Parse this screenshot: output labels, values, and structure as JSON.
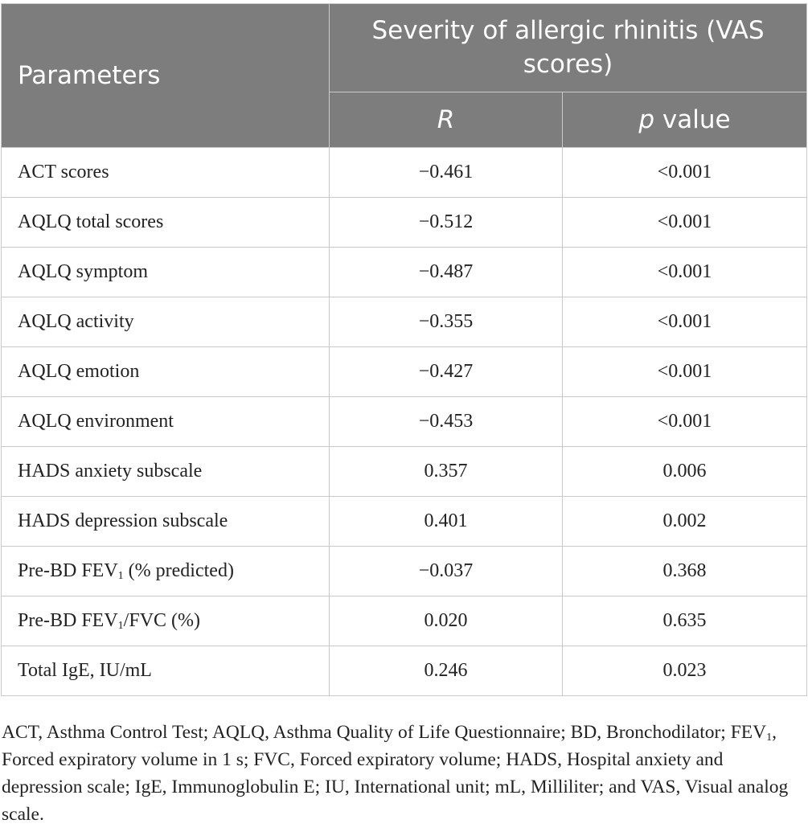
{
  "table": {
    "header": {
      "parameters": "Parameters",
      "group": "Severity of allergic rhinitis (VAS scores)",
      "col_r": "R",
      "col_p_italic": "p",
      "col_p_rest": " value"
    },
    "rows": [
      {
        "name": "ACT scores",
        "r": "−0.461",
        "p": "<0.001"
      },
      {
        "name": "AQLQ total scores",
        "r": "−0.512",
        "p": "<0.001"
      },
      {
        "name": "AQLQ symptom",
        "r": "−0.487",
        "p": "<0.001"
      },
      {
        "name": "AQLQ activity",
        "r": "−0.355",
        "p": "<0.001"
      },
      {
        "name": "AQLQ emotion",
        "r": "−0.427",
        "p": "<0.001"
      },
      {
        "name": "AQLQ environment",
        "r": "−0.453",
        "p": "<0.001"
      },
      {
        "name": "HADS anxiety subscale",
        "r": "0.357",
        "p": "0.006"
      },
      {
        "name": "HADS depression subscale",
        "r": "0.401",
        "p": "0.002"
      },
      {
        "name_pre": "Pre-BD FEV",
        "name_sub": "1",
        "name_post": " (% predicted)",
        "r": "−0.037",
        "p": "0.368"
      },
      {
        "name_pre": "Pre-BD FEV",
        "name_sub": "1",
        "name_post": "/FVC (%)",
        "r": "0.020",
        "p": "0.635"
      },
      {
        "name": "Total IgE, IU/mL",
        "r": "0.246",
        "p": "0.023"
      }
    ]
  },
  "footnote": {
    "part1": "ACT, Asthma Control Test; AQLQ, Asthma Quality of Life Questionnaire; BD, Bronchodilator; FEV",
    "sub": "1",
    "part2": ", Forced expiratory volume in 1 s; FVC, Forced expiratory volume; HADS, Hospital anxiety and depression scale; IgE, Immunoglobulin E; IU, International unit; mL, Milliliter; and VAS, Visual analog scale."
  }
}
